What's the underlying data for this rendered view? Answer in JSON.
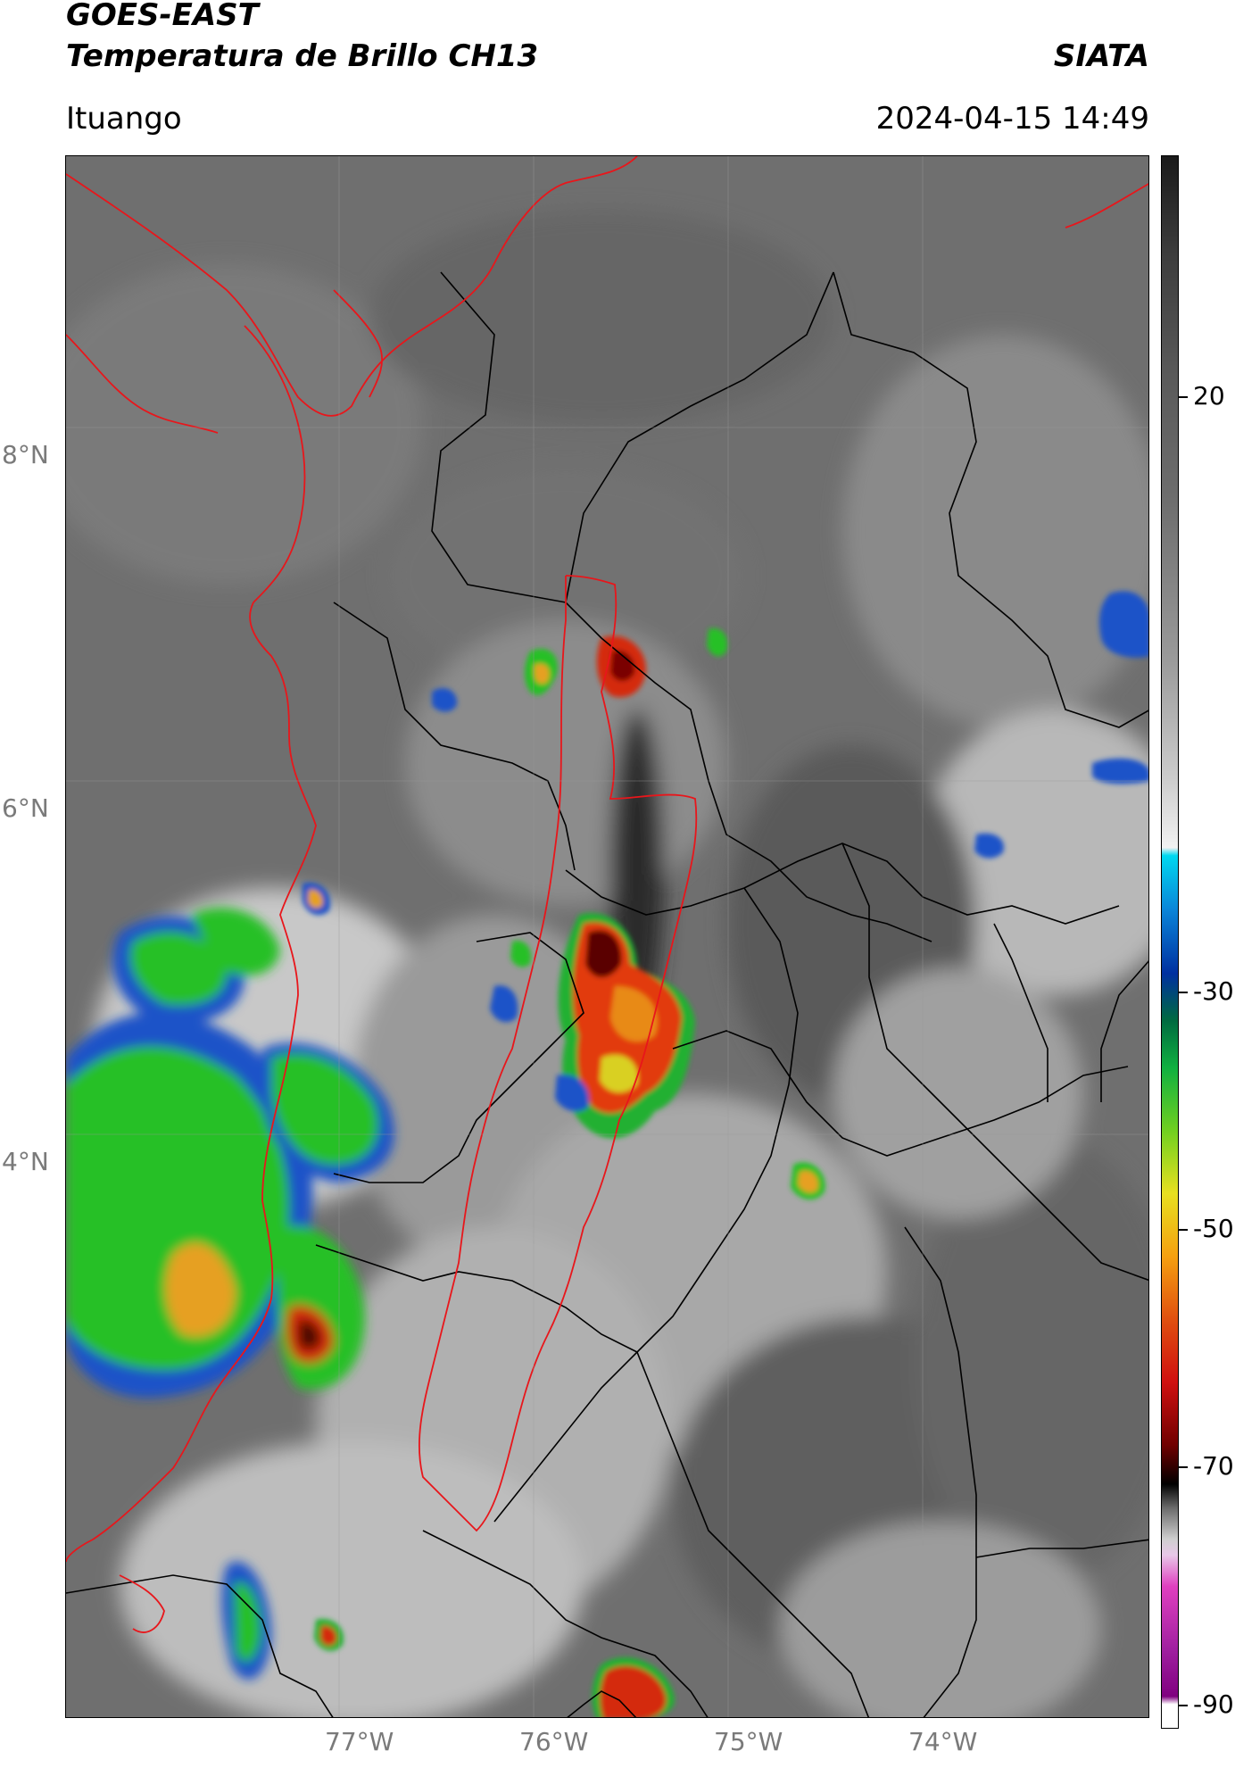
{
  "header": {
    "title_line1": "GOES-EAST",
    "title_line2": "Temperatura de Brillo CH13",
    "organization": "SIATA",
    "location": "Ituango",
    "datetime": "2024-04-15 14:49"
  },
  "map": {
    "latitude_labels": [
      {
        "text": "8°N",
        "lat": 8
      },
      {
        "text": "6°N",
        "lat": 6
      },
      {
        "text": "4°N",
        "lat": 4
      }
    ],
    "longitude_labels": [
      {
        "text": "77°W",
        "lon": -77
      },
      {
        "text": "76°W",
        "lon": -76
      },
      {
        "text": "75°W",
        "lon": -75
      },
      {
        "text": "74°W",
        "lon": -74
      }
    ],
    "colors": {
      "background_gray": "#6e6e6e",
      "country_border": "#e8161b",
      "department_border": "#000000"
    }
  },
  "colorbar": {
    "ticks": [
      "20",
      "-30",
      "-50",
      "-70",
      "-90"
    ],
    "tick_values": [
      20,
      -30,
      -50,
      -70,
      -90
    ],
    "range": [
      -93,
      33
    ],
    "units_shown": false
  }
}
